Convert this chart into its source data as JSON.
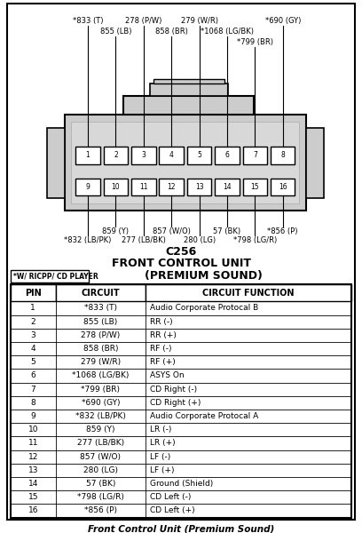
{
  "title_connector": "C256",
  "title_unit": "FRONT CONTROL UNIT",
  "title_sound": "(PREMIUM SOUND)",
  "note": "*W/ RICPP/ CD PLAYER",
  "footer": "Front Control Unit (Premium Sound)",
  "pins_top": [
    1,
    2,
    3,
    4,
    5,
    6,
    7,
    8
  ],
  "pins_bottom": [
    9,
    10,
    11,
    12,
    13,
    14,
    15,
    16
  ],
  "top_wire_labels": [
    [
      "*833 (T)",
      "855 (LB)"
    ],
    [
      "278 (P/W)",
      "858 (BR)"
    ],
    [
      "279 (W/R)",
      "*1068 (LG/BK)"
    ],
    [
      "*799 (BR)",
      null
    ],
    [
      "*690 (GY)",
      null
    ],
    [
      null,
      null
    ],
    [
      null,
      null
    ],
    [
      null,
      null
    ]
  ],
  "bottom_wire_labels": [
    [
      "*832 (LB/PK)",
      null
    ],
    [
      "859 (Y)",
      null
    ],
    [
      "277 (LB/BK)",
      null
    ],
    [
      "857 (W/O)",
      null
    ],
    [
      "280 (LG)",
      null
    ],
    [
      "57 (BK)",
      null
    ],
    [
      "*798 (LG/R)",
      null
    ],
    [
      "*856 (P)",
      null
    ]
  ],
  "table_headers": [
    "PIN",
    "CIRCUIT",
    "CIRCUIT FUNCTION"
  ],
  "table_rows": [
    [
      "1",
      "*833 (T)",
      "Audio Corporate Protocal B"
    ],
    [
      "2",
      "855 (LB)",
      "RR (-)"
    ],
    [
      "3",
      "278 (P/W)",
      "RR (+)"
    ],
    [
      "4",
      "858 (BR)",
      "RF (-)"
    ],
    [
      "5",
      "279 (W/R)",
      "RF (+)"
    ],
    [
      "6",
      "*1068 (LG/BK)",
      "ASYS On"
    ],
    [
      "7",
      "*799 (BR)",
      "CD Right (-)"
    ],
    [
      "8",
      "*690 (GY)",
      "CD Right (+)"
    ],
    [
      "9",
      "*832 (LB/PK)",
      "Audio Corporate Protocal A"
    ],
    [
      "10",
      "859 (Y)",
      "LR (-)"
    ],
    [
      "11",
      "277 (LB/BK)",
      "LR (+)"
    ],
    [
      "12",
      "857 (W/O)",
      "LF (-)"
    ],
    [
      "13",
      "280 (LG)",
      "LF (+)"
    ],
    [
      "14",
      "57 (BK)",
      "Ground (Shield)"
    ],
    [
      "15",
      "*798 (LG/R)",
      "CD Left (-)"
    ],
    [
      "16",
      "*856 (P)",
      "CD Left (+)"
    ]
  ],
  "connector_fill": "#cccccc",
  "white": "#ffffff",
  "black": "#000000",
  "light_gray": "#e8e8e8"
}
